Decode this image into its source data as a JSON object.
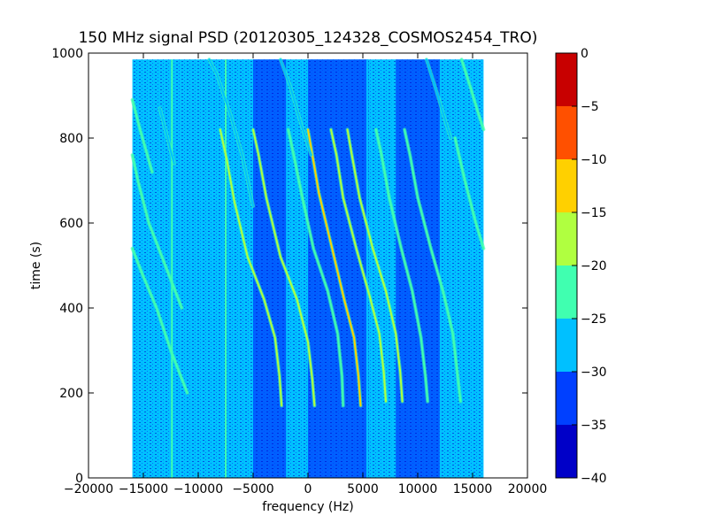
{
  "chart_data": {
    "type": "heatmap",
    "title": "150 MHz signal PSD (20120305_124328_COSMOS2454_TRO)",
    "xlabel": "frequency (Hz)",
    "ylabel": "time (s)",
    "xlim": [
      -20000,
      20000
    ],
    "ylim": [
      0,
      1000
    ],
    "x_ticks": [
      -20000,
      -15000,
      -10000,
      -5000,
      0,
      5000,
      10000,
      15000,
      20000
    ],
    "x_tick_labels": [
      "−20000",
      "−15000",
      "−10000",
      "−5000",
      "0",
      "5000",
      "10000",
      "15000",
      "20000"
    ],
    "y_ticks": [
      0,
      200,
      400,
      600,
      800,
      1000
    ],
    "y_tick_labels": [
      "0",
      "200",
      "400",
      "600",
      "800",
      "1000"
    ],
    "data_extent": {
      "x": [
        -16000,
        16000
      ],
      "y": [
        0,
        985
      ]
    },
    "colorbar": {
      "levels": [
        -40,
        -35,
        -30,
        -25,
        -20,
        -15,
        -10,
        -5,
        0
      ],
      "tick_labels": [
        "−40",
        "−35",
        "−30",
        "−25",
        "−20",
        "−15",
        "−10",
        "−5",
        "0"
      ],
      "colors": [
        "#0000c8",
        "#0040ff",
        "#00c0ff",
        "#40ffb0",
        "#b0ff40",
        "#ffd000",
        "#ff5000",
        "#c80000"
      ]
    },
    "background_level": -27,
    "dark_regions": [
      {
        "x": [
          -5000,
          -2000
        ],
        "level": -33
      },
      {
        "x": [
          0,
          5500
        ],
        "level": -32
      },
      {
        "x": [
          8000,
          12000
        ],
        "level": -34
      }
    ],
    "vertical_lines": [
      {
        "x": -12400,
        "level": -22
      },
      {
        "x": -7500,
        "level": -24
      },
      {
        "x": 5400,
        "level": -27
      },
      {
        "x": 7700,
        "level": -27
      }
    ],
    "traces": [
      {
        "x": [
          -8000,
          -7400,
          -6700,
          -5500,
          -4000,
          -3000,
          -2600,
          -2400
        ],
        "y": [
          820,
          750,
          650,
          520,
          420,
          330,
          240,
          170
        ],
        "level": -20
      },
      {
        "x": [
          -5000,
          -4500,
          -3800,
          -2500,
          -1000,
          0,
          400,
          600
        ],
        "y": [
          820,
          760,
          660,
          520,
          420,
          320,
          230,
          170
        ],
        "level": -20
      },
      {
        "x": [
          -1800,
          -1300,
          -600,
          500,
          1800,
          2700,
          3100,
          3200
        ],
        "y": [
          820,
          760,
          670,
          540,
          440,
          340,
          240,
          170
        ],
        "level": -25
      },
      {
        "x": [
          0,
          400,
          1000,
          2200,
          3300,
          4200,
          4600,
          4800
        ],
        "y": [
          820,
          760,
          670,
          540,
          420,
          330,
          240,
          170
        ],
        "level": -12
      },
      {
        "x": [
          2100,
          2600,
          3200,
          4400,
          5600,
          6500,
          6900,
          7100
        ],
        "y": [
          820,
          760,
          660,
          540,
          430,
          340,
          250,
          180
        ],
        "level": -18
      },
      {
        "x": [
          3600,
          4000,
          4700,
          5900,
          7100,
          8000,
          8400,
          8600
        ],
        "y": [
          820,
          760,
          660,
          540,
          440,
          340,
          250,
          180
        ],
        "level": -18
      },
      {
        "x": [
          6200,
          6700,
          7400,
          8500,
          9500,
          10300,
          10700,
          10900
        ],
        "y": [
          820,
          760,
          660,
          540,
          440,
          330,
          240,
          180
        ],
        "level": -22
      },
      {
        "x": [
          8800,
          9300,
          10000,
          11200,
          12300,
          13200,
          13600,
          13900
        ],
        "y": [
          820,
          760,
          660,
          540,
          440,
          340,
          250,
          180
        ],
        "level": -25
      },
      {
        "x": [
          -16000,
          -15100,
          -13800,
          -12500,
          -11000
        ],
        "y": [
          540,
          480,
          400,
          300,
          200
        ],
        "level": -22
      },
      {
        "x": [
          -16000,
          -15500,
          -14500,
          -13000,
          -11500
        ],
        "y": [
          760,
          700,
          600,
          500,
          400
        ],
        "level": -25
      },
      {
        "x": [
          -16000,
          -15300,
          -14200
        ],
        "y": [
          890,
          820,
          720
        ],
        "level": -22
      },
      {
        "x": [
          -13500,
          -13000,
          -12200
        ],
        "y": [
          870,
          820,
          740
        ],
        "level": -26
      },
      {
        "x": [
          14000,
          14800,
          15500,
          16000
        ],
        "y": [
          985,
          920,
          860,
          820
        ],
        "level": -22
      },
      {
        "x": [
          13400,
          14300,
          15300,
          16000
        ],
        "y": [
          800,
          700,
          600,
          540
        ],
        "level": -24
      },
      {
        "x": [
          -9000,
          -8300,
          -7000,
          -6000,
          -5000
        ],
        "y": [
          985,
          950,
          850,
          760,
          640
        ],
        "level": -26
      },
      {
        "x": [
          -2500,
          -1600,
          -600,
          300
        ],
        "y": [
          985,
          920,
          830,
          760
        ],
        "level": -26
      },
      {
        "x": [
          10800,
          11600,
          12400,
          13000
        ],
        "y": [
          985,
          920,
          850,
          800
        ],
        "level": -26
      }
    ]
  }
}
